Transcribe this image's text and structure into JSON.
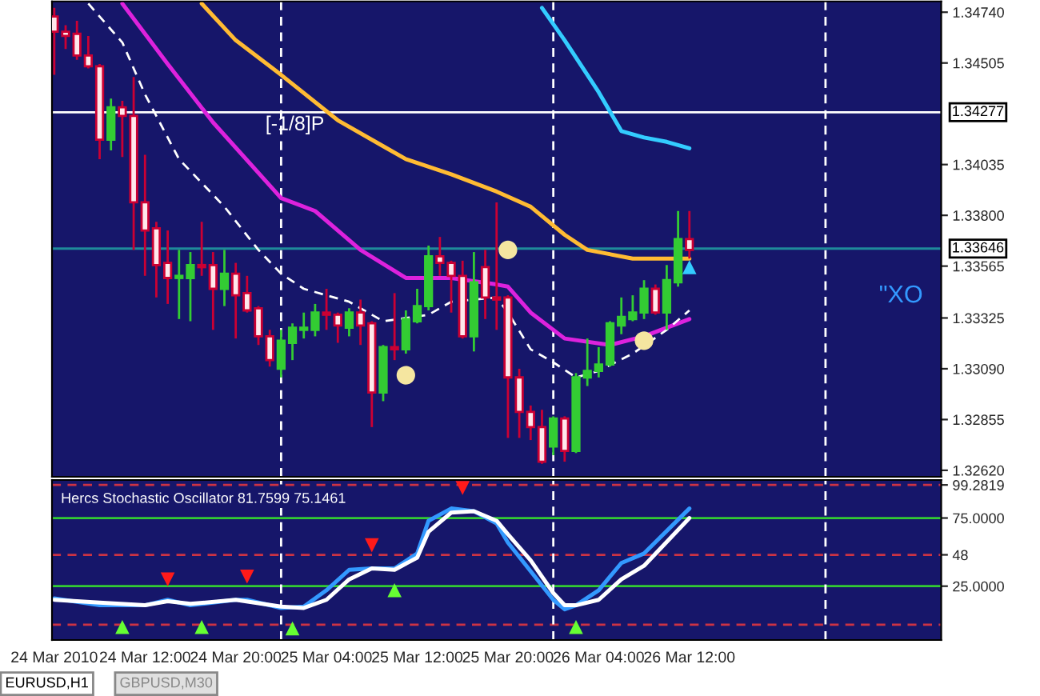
{
  "chart_data": [
    {
      "type": "candlestick",
      "x": [
        "2010-03-24T04:00",
        "2010-03-24T05:00",
        "2010-03-24T06:00",
        "2010-03-24T07:00",
        "2010-03-24T08:00",
        "2010-03-24T09:00",
        "2010-03-24T10:00",
        "2010-03-24T11:00",
        "2010-03-24T12:00",
        "2010-03-24T13:00",
        "2010-03-24T14:00",
        "2010-03-24T15:00",
        "2010-03-24T16:00",
        "2010-03-24T17:00",
        "2010-03-24T18:00",
        "2010-03-24T19:00",
        "2010-03-24T20:00",
        "2010-03-24T21:00",
        "2010-03-24T22:00",
        "2010-03-24T23:00",
        "2010-03-25T00:00",
        "2010-03-25T01:00",
        "2010-03-25T02:00",
        "2010-03-25T03:00",
        "2010-03-25T04:00",
        "2010-03-25T05:00",
        "2010-03-25T06:00",
        "2010-03-25T07:00",
        "2010-03-25T08:00",
        "2010-03-25T09:00",
        "2010-03-25T10:00",
        "2010-03-25T11:00",
        "2010-03-25T12:00",
        "2010-03-25T13:00",
        "2010-03-25T14:00",
        "2010-03-25T15:00",
        "2010-03-25T16:00",
        "2010-03-25T17:00",
        "2010-03-25T18:00",
        "2010-03-25T19:00",
        "2010-03-25T20:00",
        "2010-03-25T21:00",
        "2010-03-25T22:00",
        "2010-03-25T23:00",
        "2010-03-26T00:00",
        "2010-03-26T01:00",
        "2010-03-26T02:00",
        "2010-03-26T03:00",
        "2010-03-26T04:00",
        "2010-03-26T05:00",
        "2010-03-26T06:00",
        "2010-03-26T07:00",
        "2010-03-26T08:00",
        "2010-03-26T09:00",
        "2010-03-26T10:00",
        "2010-03-26T11:00",
        "2010-03-26T12:00"
      ],
      "ohlc": [
        [
          1.3472,
          1.3476,
          1.3445,
          1.3465
        ],
        [
          1.3465,
          1.3468,
          1.3457,
          1.3463
        ],
        [
          1.3464,
          1.347,
          1.3452,
          1.3454
        ],
        [
          1.3454,
          1.3463,
          1.3448,
          1.3449
        ],
        [
          1.3449,
          1.345,
          1.3406,
          1.3415
        ],
        [
          1.3415,
          1.3434,
          1.341,
          1.343
        ],
        [
          1.343,
          1.3433,
          1.3407,
          1.3426
        ],
        [
          1.3426,
          1.3444,
          1.3364,
          1.3386
        ],
        [
          1.3386,
          1.3408,
          1.3352,
          1.3373
        ],
        [
          1.3374,
          1.3377,
          1.3342,
          1.3357
        ],
        [
          1.3358,
          1.3373,
          1.3339,
          1.3351
        ],
        [
          1.3351,
          1.3364,
          1.3332,
          1.3352
        ],
        [
          1.3351,
          1.3363,
          1.3331,
          1.3357
        ],
        [
          1.3357,
          1.3377,
          1.3352,
          1.3356
        ],
        [
          1.3357,
          1.3363,
          1.3327,
          1.3346
        ],
        [
          1.3346,
          1.3364,
          1.3338,
          1.3353
        ],
        [
          1.3353,
          1.3358,
          1.3323,
          1.3343
        ],
        [
          1.3344,
          1.3352,
          1.3335,
          1.3336
        ],
        [
          1.3337,
          1.3338,
          1.332,
          1.3324
        ],
        [
          1.3324,
          1.3327,
          1.331,
          1.3313
        ],
        [
          1.3309,
          1.3327,
          1.3305,
          1.3322
        ],
        [
          1.3321,
          1.333,
          1.3313,
          1.3328
        ],
        [
          1.3327,
          1.3335,
          1.3323,
          1.3328
        ],
        [
          1.3327,
          1.3339,
          1.3324,
          1.3335
        ],
        [
          1.3335,
          1.3346,
          1.3327,
          1.3334
        ],
        [
          1.3334,
          1.3335,
          1.3321,
          1.3329
        ],
        [
          1.3328,
          1.3337,
          1.3324,
          1.3335
        ],
        [
          1.3335,
          1.3341,
          1.332,
          1.3329
        ],
        [
          1.333,
          1.3331,
          1.3282,
          1.3298
        ],
        [
          1.3298,
          1.332,
          1.3294,
          1.3319
        ],
        [
          1.3319,
          1.3344,
          1.3313,
          1.3318
        ],
        [
          1.3318,
          1.3336,
          1.3316,
          1.3332
        ],
        [
          1.3331,
          1.3346,
          1.333,
          1.3338
        ],
        [
          1.3338,
          1.3366,
          1.3336,
          1.3361
        ],
        [
          1.3361,
          1.337,
          1.3352,
          1.3358
        ],
        [
          1.3358,
          1.3359,
          1.3335,
          1.3352
        ],
        [
          1.3352,
          1.3359,
          1.3323,
          1.3324
        ],
        [
          1.3324,
          1.3363,
          1.3317,
          1.3349
        ],
        [
          1.3356,
          1.3364,
          1.3332,
          1.3342
        ],
        [
          1.3342,
          1.3386,
          1.3327,
          1.3341
        ],
        [
          1.3342,
          1.3343,
          1.3277,
          1.3305
        ],
        [
          1.3305,
          1.3309,
          1.3277,
          1.3289
        ],
        [
          1.3289,
          1.3292,
          1.3276,
          1.3282
        ],
        [
          1.3282,
          1.329,
          1.3265,
          1.3266
        ],
        [
          1.3273,
          1.3287,
          1.3269,
          1.3286
        ],
        [
          1.3286,
          1.3287,
          1.3266,
          1.3271
        ],
        [
          1.3271,
          1.3307,
          1.327,
          1.3305
        ],
        [
          1.3305,
          1.3323,
          1.3301,
          1.3308
        ],
        [
          1.3308,
          1.3319,
          1.3305,
          1.3311
        ],
        [
          1.3311,
          1.3331,
          1.331,
          1.333
        ],
        [
          1.3329,
          1.3342,
          1.3325,
          1.3333
        ],
        [
          1.3332,
          1.3343,
          1.3331,
          1.3335
        ],
        [
          1.3335,
          1.335,
          1.3332,
          1.3346
        ],
        [
          1.3346,
          1.3348,
          1.3334,
          1.3335
        ],
        [
          1.3335,
          1.3357,
          1.3327,
          1.335
        ],
        [
          1.3349,
          1.3382,
          1.3347,
          1.3369
        ],
        [
          1.3369,
          1.3382,
          1.336,
          1.3364
        ]
      ],
      "colors": [
        "#cc0033",
        "#cc0033",
        "#cc0033",
        "#cc0033",
        "#cc0033",
        "#33cc33",
        "#cc0033",
        "#cc0033",
        "#cc0033",
        "#cc0033",
        "#cc0033",
        "#33cc33",
        "#33cc33",
        "#cc0033",
        "#cc0033",
        "#33cc33",
        "#cc0033",
        "#cc0033",
        "#cc0033",
        "#cc0033",
        "#33cc33",
        "#33cc33",
        "#33cc33",
        "#33cc33",
        "#cc0033",
        "#cc0033",
        "#33cc33",
        "#cc0033",
        "#cc0033",
        "#33cc33",
        "#cc0033",
        "#33cc33",
        "#33cc33",
        "#33cc33",
        "#cc0033",
        "#cc0033",
        "#cc0033",
        "#33cc33",
        "#cc0033",
        "#cc0033",
        "#cc0033",
        "#cc0033",
        "#cc0033",
        "#cc0033",
        "#33cc33",
        "#cc0033",
        "#33cc33",
        "#33cc33",
        "#33cc33",
        "#33cc33",
        "#33cc33",
        "#33cc33",
        "#33cc33",
        "#cc0033",
        "#33cc33",
        "#33cc33",
        "#cc0033"
      ],
      "series": [
        {
          "type": "line",
          "color": "#33ccff",
          "x": [
            "2010-03-25T23:00",
            "2010-03-26T01:00",
            "2010-03-26T04:00",
            "2010-03-26T06:00",
            "2010-03-26T08:00",
            "2010-03-26T10:00",
            "2010-03-26T12:00"
          ],
          "values": [
            1.3476,
            1.3461,
            1.3437,
            1.3419,
            1.3416,
            1.3414,
            1.3411
          ]
        },
        {
          "type": "line",
          "color": "#ffbb33",
          "x": [
            "2010-03-24T17:00",
            "2010-03-24T20:00",
            "2010-03-25T00:00",
            "2010-03-25T05:00",
            "2010-03-25T09:00",
            "2010-03-25T11:00",
            "2010-03-25T15:00",
            "2010-03-25T19:00",
            "2010-03-25T22:00",
            "2010-03-26T01:00",
            "2010-03-26T03:00",
            "2010-03-26T07:00",
            "2010-03-26T12:00"
          ],
          "values": [
            1.3478,
            1.3461,
            1.3445,
            1.3424,
            1.3412,
            1.3406,
            1.3399,
            1.3391,
            1.3384,
            1.3371,
            1.3364,
            1.336,
            1.336
          ]
        },
        {
          "type": "line",
          "color": "#dd22dd",
          "x": [
            "2010-03-24T10:00",
            "2010-03-24T14:00",
            "2010-03-24T18:00",
            "2010-03-25T00:00",
            "2010-03-25T03:00",
            "2010-03-25T07:00",
            "2010-03-25T11:00",
            "2010-03-25T15:00",
            "2010-03-25T19:00",
            "2010-03-25T20:00",
            "2010-03-25T22:00",
            "2010-03-26T01:00",
            "2010-03-26T05:00",
            "2010-03-26T08:00",
            "2010-03-26T12:00"
          ],
          "values": [
            1.3478,
            1.345,
            1.3423,
            1.3388,
            1.3382,
            1.3364,
            1.3351,
            1.3351,
            1.3348,
            1.3347,
            1.3335,
            1.3323,
            1.332,
            1.3324,
            1.3332
          ]
        },
        {
          "type": "line",
          "color": "#ffffff",
          "line_style": "dashed",
          "x": [
            "2010-03-24T07:00",
            "2010-03-24T10:00",
            "2010-03-24T12:00",
            "2010-03-24T15:00",
            "2010-03-24T19:00",
            "2010-03-24T22:00",
            "2010-03-25T00:00",
            "2010-03-25T02:00",
            "2010-03-25T06:00",
            "2010-03-25T09:00",
            "2010-03-25T11:00",
            "2010-03-25T13:00",
            "2010-03-25T15:00",
            "2010-03-25T19:00",
            "2010-03-25T20:00",
            "2010-03-25T22:00",
            "2010-03-26T00:00",
            "2010-03-26T02:00",
            "2010-03-26T04:00",
            "2010-03-26T07:00",
            "2010-03-26T10:00",
            "2010-03-26T12:00"
          ],
          "values": [
            1.3478,
            1.346,
            1.3436,
            1.3406,
            1.3384,
            1.3364,
            1.3353,
            1.3346,
            1.334,
            1.3331,
            null,
            1.3334,
            1.334,
            1.3342,
            1.3335,
            1.3318,
            1.3312,
            1.3305,
            1.3308,
            1.3316,
            1.3327,
            1.3336
          ]
        },
        {
          "type": "scatter",
          "color": "#f5e6a0",
          "marker": "circle",
          "x": [
            "2010-03-25T11:00",
            "2010-03-25T20:00",
            "2010-03-26T08:00"
          ],
          "values": [
            1.3306,
            1.3364,
            1.3322
          ]
        },
        {
          "type": "scatter",
          "color": "#33ccff",
          "marker": "triangle",
          "x": [
            "2010-03-26T12:00"
          ],
          "values": [
            1.3356
          ]
        }
      ],
      "ref_lines": [
        {
          "axis": "y",
          "value": 1.34277,
          "label": "1.34277",
          "color": "#ffffff",
          "line_style": "solid"
        },
        {
          "axis": "y",
          "value": 1.33646,
          "label": "1.33646",
          "color": "#1f8a9a",
          "line_style": "solid"
        },
        {
          "axis": "x",
          "value": "2010-03-25T00:00",
          "color": "#ffffff",
          "line_style": "dashed"
        },
        {
          "axis": "x",
          "value": "2010-03-26T00:00",
          "color": "#ffffff",
          "line_style": "dashed"
        },
        {
          "axis": "x",
          "value": "2010-03-27T00:00",
          "color": "#ffffff",
          "line_style": "dashed"
        }
      ],
      "annotations": [
        "[-1/8]P",
        "\"XO"
      ],
      "xlim": [
        "2010-03-24T03:48",
        "2010-03-27T10:12"
      ],
      "ylim": [
        1.3259,
        1.3479
      ],
      "yticks": [
        {
          "value": 1.3474,
          "label": "1.34740"
        },
        {
          "value": 1.34505,
          "label": "1.34505"
        },
        {
          "value": 1.34035,
          "label": "1.34035"
        },
        {
          "value": 1.338,
          "label": "1.33800"
        },
        {
          "value": 1.33565,
          "label": "1.33565"
        },
        {
          "value": 1.33325,
          "label": "1.33325"
        },
        {
          "value": 1.3309,
          "label": "1.33090"
        },
        {
          "value": 1.32855,
          "label": "1.32855"
        },
        {
          "value": 1.3262,
          "label": "1.32620"
        }
      ],
      "tick_labels": "y"
    },
    {
      "type": "line",
      "title": "Hercs Stochastic Oscillator 81.7599 75.1461",
      "series": [
        {
          "type": "line",
          "color": "#3399ff",
          "x": [
            "2010-03-24T04:00",
            "2010-03-24T08:00",
            "2010-03-24T12:00",
            "2010-03-24T14:00",
            "2010-03-24T16:00",
            "2010-03-24T20:00",
            "2010-03-24T21:00",
            "2010-03-25T00:00",
            "2010-03-25T02:00",
            "2010-03-25T04:00",
            "2010-03-25T06:00",
            "2010-03-25T08:00",
            "2010-03-25T10:00",
            "2010-03-25T12:00",
            "2010-03-25T13:00",
            "2010-03-25T15:00",
            "2010-03-25T17:00",
            "2010-03-25T19:00",
            "2010-03-25T20:00",
            "2010-03-25T22:00",
            "2010-03-26T00:00",
            "2010-03-26T01:00",
            "2010-03-26T02:00",
            "2010-03-26T04:00",
            "2010-03-26T06:00",
            "2010-03-26T08:00",
            "2010-03-26T12:00"
          ],
          "values": [
            16,
            11,
            11,
            15,
            11,
            15,
            15,
            9,
            10,
            22,
            37,
            38,
            38,
            49,
            73,
            82,
            80,
            71,
            57,
            36,
            15,
            8,
            11,
            22,
            42,
            49,
            82
          ]
        },
        {
          "type": "line",
          "color": "#ffffff",
          "x": [
            "2010-03-24T04:00",
            "2010-03-24T08:00",
            "2010-03-24T12:00",
            "2010-03-24T14:00",
            "2010-03-24T16:00",
            "2010-03-24T20:00",
            "2010-03-25T00:00",
            "2010-03-25T02:00",
            "2010-03-25T04:00",
            "2010-03-25T06:00",
            "2010-03-25T08:00",
            "2010-03-25T10:00",
            "2010-03-25T12:00",
            "2010-03-25T13:00",
            "2010-03-25T15:00",
            "2010-03-25T17:00",
            "2010-03-25T19:00",
            "2010-03-25T20:00",
            "2010-03-25T22:00",
            "2010-03-26T00:00",
            "2010-03-26T01:00",
            "2010-03-26T02:00",
            "2010-03-26T04:00",
            "2010-03-26T06:00",
            "2010-03-26T08:00",
            "2010-03-26T12:00"
          ],
          "values": [
            15,
            13,
            11,
            14,
            12,
            15,
            10,
            9,
            15,
            30,
            38,
            37,
            46,
            65,
            79,
            80,
            73,
            63,
            44,
            20,
            11,
            11,
            15,
            30,
            40,
            75
          ]
        },
        {
          "type": "scatter",
          "color": "#66ff33",
          "marker": "triangle",
          "x": [
            "2010-03-24T10:00",
            "2010-03-24T17:00",
            "2010-03-25T01:00",
            "2010-03-25T10:00",
            "2010-03-26T02:00"
          ],
          "values": [
            -5,
            -5,
            -6,
            22,
            -5
          ]
        },
        {
          "type": "scatter",
          "color": "#ff1a1a",
          "marker": "triangle_down",
          "x": [
            "2010-03-24T14:00",
            "2010-03-24T21:00",
            "2010-03-25T08:00",
            "2010-03-25T16:00"
          ],
          "values": [
            30,
            32,
            55,
            97
          ]
        }
      ],
      "ref_lines": [
        {
          "axis": "y",
          "value": 99.2819,
          "color": "#cc3344",
          "line_style": "dashed"
        },
        {
          "axis": "y",
          "value": 75,
          "color": "#33cc33",
          "line_style": "solid"
        },
        {
          "axis": "y",
          "value": 48,
          "color": "#cc3344",
          "line_style": "dashed"
        },
        {
          "axis": "y",
          "value": 25,
          "color": "#33cc33",
          "line_style": "solid"
        },
        {
          "axis": "y",
          "value": -3.2819,
          "color": "#cc3344",
          "line_style": "dashed"
        },
        {
          "axis": "x",
          "value": "2010-03-25T00:00",
          "color": "#ffffff",
          "line_style": "dashed"
        },
        {
          "axis": "x",
          "value": "2010-03-26T00:00",
          "color": "#ffffff",
          "line_style": "dashed"
        },
        {
          "axis": "x",
          "value": "2010-03-27T00:00",
          "color": "#ffffff",
          "line_style": "dashed"
        }
      ],
      "annotations": [
        "EURUSD,H1",
        "GBPUSD,M30"
      ],
      "xlim": [
        "2010-03-24T03:48",
        "2010-03-27T10:12"
      ],
      "xticks": [
        {
          "value": "2010-03-24T04:00",
          "label": "24 Mar 2010"
        },
        {
          "value": "2010-03-24T12:00",
          "label": "24 Mar 12:00"
        },
        {
          "value": "2010-03-24T20:00",
          "label": "24 Mar 20:00"
        },
        {
          "value": "2010-03-25T04:00",
          "label": "25 Mar 04:00"
        },
        {
          "value": "2010-03-25T12:00",
          "label": "25 Mar 12:00"
        },
        {
          "value": "2010-03-25T20:00",
          "label": "25 Mar 20:00"
        },
        {
          "value": "2010-03-26T04:00",
          "label": "26 Mar 04:00"
        },
        {
          "value": "2010-03-26T12:00",
          "label": "26 Mar 12:00"
        }
      ],
      "ylim": [
        -14.5,
        102.9
      ],
      "yticks": [
        {
          "value": 99.2819,
          "label": "99.2819"
        },
        {
          "value": 75,
          "label": "75.0000"
        },
        48,
        {
          "value": 25,
          "label": "25.0000"
        }
      ]
    }
  ]
}
